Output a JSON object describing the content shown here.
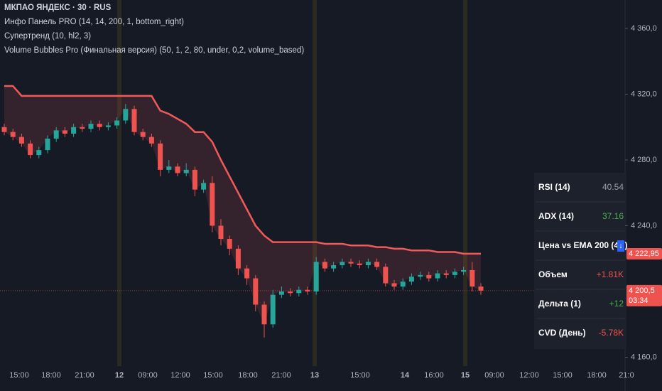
{
  "chart_data": {
    "type": "candlestick",
    "title": "МКПАО ЯНДЕКС · 30 · RUS",
    "indicators": [
      "Инфо Панель PRO (14, 14, 200, 1, bottom_right)",
      "Супертренд (10, hl2, 3)",
      "Volume Bubbles Pro (Финальная версия) (50, 1, 2, 80, under, 0,2, volume_based)"
    ],
    "up_color": "#26a69a",
    "down_color": "#ef5350",
    "open": [
      4300,
      4297,
      4294,
      4290,
      4283,
      4286,
      4293,
      4298,
      4296,
      4300,
      4299,
      4302,
      4300,
      4301,
      4304,
      4311,
      4297,
      4294,
      4290,
      4274,
      4276,
      4272,
      4274,
      4262,
      4266,
      4240,
      4232,
      4226,
      4214,
      4208,
      4192,
      4180,
      4198,
      4200,
      4199,
      4201,
      4200,
      4218,
      4214,
      4216,
      4218,
      4217,
      4216,
      4218,
      4215,
      4205,
      4203,
      4206,
      4209,
      4210,
      4208,
      4211,
      4210,
      4212,
      4213,
      4203
    ],
    "high": [
      4302,
      4299,
      4296,
      4292,
      4288,
      4295,
      4300,
      4300,
      4302,
      4302,
      4304,
      4304,
      4303,
      4306,
      4314,
      4313,
      4299,
      4296,
      4292,
      4280,
      4278,
      4278,
      4276,
      4268,
      4270,
      4244,
      4234,
      4228,
      4216,
      4210,
      4194,
      4201,
      4203,
      4202,
      4203,
      4203,
      4221,
      4220,
      4218,
      4220,
      4220,
      4219,
      4220,
      4220,
      4217,
      4207,
      4208,
      4211,
      4212,
      4212,
      4213,
      4213,
      4214,
      4215,
      4218,
      4205
    ],
    "low": [
      4295,
      4292,
      4288,
      4281,
      4281,
      4284,
      4291,
      4294,
      4294,
      4297,
      4297,
      4298,
      4298,
      4299,
      4302,
      4295,
      4292,
      4288,
      4270,
      4272,
      4270,
      4270,
      4258,
      4260,
      4236,
      4228,
      4222,
      4210,
      4204,
      4188,
      4172,
      4178,
      4196,
      4197,
      4197,
      4198,
      4198,
      4212,
      4212,
      4214,
      4215,
      4214,
      4214,
      4213,
      4203,
      4201,
      4201,
      4204,
      4207,
      4206,
      4206,
      4208,
      4208,
      4210,
      4200,
      4198
    ],
    "close": [
      4297,
      4294,
      4290,
      4283,
      4286,
      4293,
      4298,
      4296,
      4300,
      4299,
      4302,
      4300,
      4301,
      4304,
      4311,
      4297,
      4294,
      4290,
      4274,
      4276,
      4272,
      4274,
      4262,
      4266,
      4240,
      4232,
      4226,
      4214,
      4208,
      4192,
      4180,
      4198,
      4200,
      4199,
      4201,
      4200,
      4218,
      4214,
      4216,
      4218,
      4217,
      4216,
      4218,
      4215,
      4205,
      4203,
      4206,
      4209,
      4210,
      4208,
      4211,
      4210,
      4212,
      4213,
      4203,
      4200.5
    ],
    "overlay": {
      "color": "#f05a5a",
      "values": [
        4325,
        4325,
        4319,
        4319,
        4319,
        4319,
        4319,
        4319,
        4319,
        4319,
        4319,
        4319,
        4319,
        4319,
        4319,
        4319,
        4319,
        4319,
        4310,
        4308,
        4305,
        4302,
        4297,
        4297,
        4291,
        4280,
        4270,
        4260,
        4250,
        4240,
        4234,
        4230,
        4230,
        4230,
        4230,
        4230,
        4230,
        4229,
        4229,
        4229,
        4228,
        4228,
        4228,
        4227,
        4227,
        4226,
        4226,
        4225,
        4225,
        4225,
        4224,
        4224,
        4224,
        4223,
        4223,
        4223
      ]
    },
    "ylim": [
      4154.6,
      4377.3
    ],
    "yticks": [
      {
        "value": 4360,
        "label": "4 360,0"
      },
      {
        "value": 4320,
        "label": "4 320,0"
      },
      {
        "value": 4280,
        "label": "4 280,0"
      },
      {
        "value": 4240,
        "label": "4 240,0"
      },
      {
        "value": 4160,
        "label": "4 160,0"
      }
    ],
    "x_labels": [
      "15:00",
      "18:00",
      "21:00",
      "12",
      "09:00",
      "12:00",
      "15:00",
      "18:00",
      "21:00",
      "13",
      "15:00",
      "14",
      "16:00",
      "15",
      "09:00",
      "12:00",
      "15:00",
      "18:00",
      "21:0"
    ],
    "price_labels": [
      {
        "value": 4222.95,
        "label": "4 222,95"
      },
      {
        "value": 4200.5,
        "label": "4 200,5",
        "countdown": "03:34"
      }
    ],
    "info_panel": [
      {
        "label": "RSI (14)",
        "value": "40.54",
        "color": "#9aa0a6"
      },
      {
        "label": "ADX (14)",
        "value": "37.16",
        "color": "#4caf50"
      },
      {
        "label": "Цена vs EMA 200 (4Ч)",
        "value": "↓",
        "color": "#2962ff"
      },
      {
        "label": "Объем",
        "value": "+1.81K",
        "color": "#ef5350"
      },
      {
        "label": "Дельта (1)",
        "value": "+12",
        "color": "#4caf50"
      },
      {
        "label": "CVD (День)",
        "value": "-5.78K",
        "color": "#ef5350"
      }
    ]
  }
}
